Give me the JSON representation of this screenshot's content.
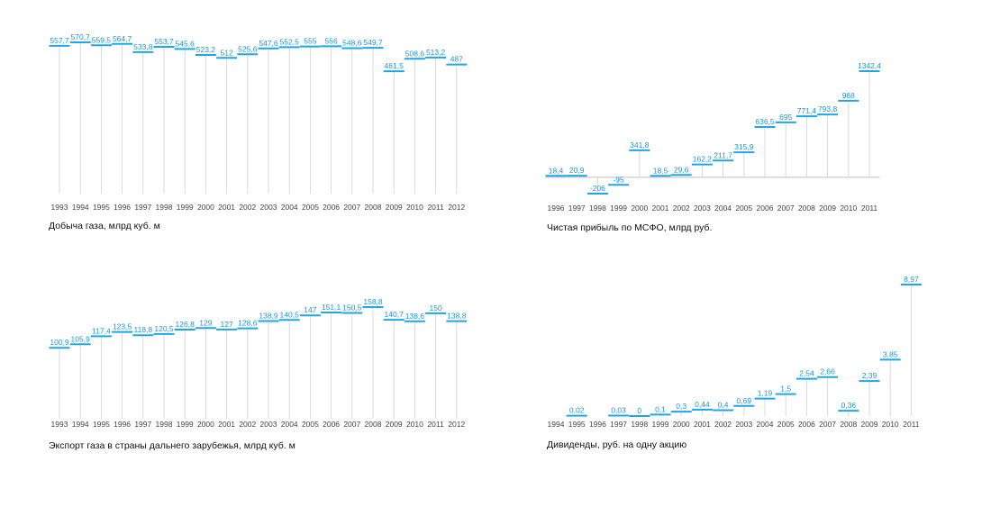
{
  "colors": {
    "bar": "#1ea7e8",
    "stem": "#d9d9d9",
    "baseline": "#bdbdbd",
    "value_text": "#2196d6"
  },
  "chart_data": [
    {
      "type": "bar",
      "title": "Добыча газа, млрд куб. м",
      "categories": [
        "1993",
        "1994",
        "1995",
        "1996",
        "1997",
        "1998",
        "1999",
        "2000",
        "2001",
        "2002",
        "2003",
        "2004",
        "2005",
        "2006",
        "2007",
        "2008",
        "2009",
        "2010",
        "2011",
        "2012"
      ],
      "values": [
        557.7,
        570.7,
        559.5,
        564.7,
        533.8,
        553.7,
        545.6,
        523.2,
        512,
        525.6,
        547.6,
        552.5,
        555,
        556,
        548.6,
        549.7,
        461.5,
        508.6,
        513.2,
        487
      ],
      "labels": [
        "557,7",
        "570,7",
        "559,5",
        "564,7",
        "533,8",
        "553,7",
        "545,6",
        "523,2",
        "512",
        "525,6",
        "547,6",
        "552,5",
        "555",
        "556",
        "548,6",
        "549,7",
        "461,5",
        "508,6",
        "513,2",
        "487"
      ],
      "ylim": [
        0,
        570.7
      ]
    },
    {
      "type": "bar",
      "title": "Чистая прибыль по МСФО, млрд руб.",
      "categories": [
        "1996",
        "1997",
        "1998",
        "1999",
        "2000",
        "2001",
        "2002",
        "2003",
        "2004",
        "2005",
        "2006",
        "2007",
        "2008",
        "2009",
        "2010",
        "2011"
      ],
      "values": [
        18.4,
        20.9,
        -206,
        -95,
        341.8,
        18.5,
        29.6,
        162.2,
        211.7,
        315.9,
        636.5,
        695,
        771.4,
        793.8,
        968,
        1342.4
      ],
      "labels": [
        "18,4",
        "20,9",
        "-206",
        "-95",
        "341,8",
        "18,5",
        "29,6",
        "162,2",
        "211,7",
        "315,9",
        "636,5",
        "695",
        "771,4",
        "793,8",
        "968",
        "1342,4"
      ],
      "ylim": [
        -206,
        1342.4
      ]
    },
    {
      "type": "bar",
      "title": "Экспорт газа в страны дальнего зарубежья, млрд куб. м",
      "categories": [
        "1993",
        "1994",
        "1995",
        "1996",
        "1997",
        "1998",
        "1999",
        "2000",
        "2001",
        "2002",
        "2003",
        "2004",
        "2005",
        "2006",
        "2007",
        "2008",
        "2009",
        "2010",
        "2011",
        "2012"
      ],
      "values": [
        100.9,
        105.9,
        117.4,
        123.5,
        118.8,
        120.5,
        126.8,
        129,
        127,
        128.6,
        138.9,
        140.5,
        147,
        151.1,
        150.5,
        158.8,
        140.7,
        138.6,
        150,
        138.8
      ],
      "labels": [
        "100,9",
        "105,9",
        "117,4",
        "123,5",
        "118,8",
        "120,5",
        "126,8",
        "129",
        "127",
        "128,6",
        "138,9",
        "140,5",
        "147",
        "151,1",
        "150,5",
        "158,8",
        "140,7",
        "138,6",
        "150",
        "138,8"
      ],
      "ylim": [
        0,
        158.8
      ]
    },
    {
      "type": "bar",
      "title": "Дивиденды, руб. на одну акцию",
      "categories": [
        "1994",
        "1995",
        "1996",
        "1997",
        "1998",
        "1999",
        "2000",
        "2001",
        "2002",
        "2003",
        "2004",
        "2005",
        "2006",
        "2007",
        "2008",
        "2009",
        "2010",
        "2011"
      ],
      "values": [
        null,
        0.02,
        null,
        0.03,
        0,
        0.1,
        0.3,
        0.44,
        0.4,
        0.69,
        1.19,
        1.5,
        2.54,
        2.66,
        0.36,
        2.39,
        3.85,
        8.97
      ],
      "labels": [
        "",
        "0,02",
        "",
        "0,03",
        "0",
        "0,1",
        "0,3",
        "0,44",
        "0,4",
        "0,69",
        "1,19",
        "1,5",
        "2,54",
        "2,66",
        "0,36",
        "2,39",
        "3,85",
        "8,97"
      ],
      "ylim": [
        0,
        8.97
      ]
    }
  ]
}
